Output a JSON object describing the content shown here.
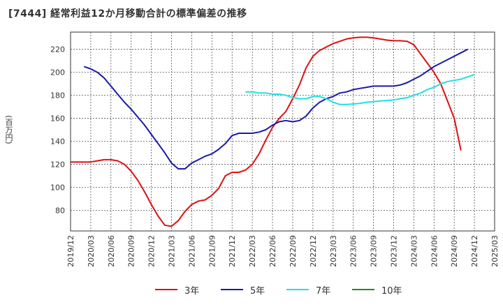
{
  "chart_data": {
    "type": "line",
    "title": "[7444]  経常利益12か月移動合計の標準偏差の推移",
    "ylabel": "(百万円)",
    "ylim": [
      62,
      235
    ],
    "yticks": [
      80,
      100,
      120,
      140,
      160,
      180,
      200,
      220
    ],
    "x_tick_labels": [
      "2019/12",
      "2020/03",
      "2020/06",
      "2020/09",
      "2020/12",
      "2021/03",
      "2021/06",
      "2021/09",
      "2021/12",
      "2022/03",
      "2022/06",
      "2022/09",
      "2022/12",
      "2023/03",
      "2023/06",
      "2023/09",
      "2023/12",
      "2024/03",
      "2024/06",
      "2024/09",
      "2024/12",
      "2025/03"
    ],
    "grid": true,
    "legend_position": "bottom",
    "series": [
      {
        "name": "3年",
        "color": "#dd1111",
        "start": "2019/12",
        "values": [
          122,
          122,
          122,
          122,
          123,
          124,
          124,
          123,
          120,
          114,
          106,
          96,
          85,
          75,
          67,
          66,
          71,
          79,
          85,
          88,
          89,
          93,
          99,
          110,
          113,
          113,
          115,
          120,
          129,
          141,
          152,
          160,
          166,
          177,
          189,
          204,
          214,
          219,
          222,
          225,
          227,
          229,
          230,
          230.5,
          230.5,
          230,
          229,
          228,
          227.5,
          227.5,
          227,
          224,
          216,
          208,
          200,
          190,
          175,
          160,
          132
        ]
      },
      {
        "name": "5年",
        "color": "#1a1aa8",
        "start": "2020/02",
        "values": [
          205,
          203,
          200,
          195,
          188,
          181,
          174,
          168,
          161,
          154,
          146,
          138,
          130,
          121,
          116,
          116,
          121,
          124,
          127,
          129,
          133,
          138,
          145,
          147,
          147,
          147,
          148,
          150,
          154,
          157,
          158,
          157,
          158,
          162,
          169,
          174,
          177,
          179,
          182,
          183,
          185,
          186,
          187,
          188,
          188,
          188,
          188,
          189,
          191,
          194,
          197,
          201,
          205,
          208,
          211,
          214,
          217,
          220
        ]
      },
      {
        "name": "7年",
        "color": "#22e0e0",
        "start": "2022/02",
        "values": [
          183,
          183,
          182,
          182,
          181,
          181,
          180,
          178,
          177,
          177,
          179,
          179,
          177,
          174,
          172,
          172,
          172.5,
          173,
          174,
          174.5,
          175,
          175.5,
          176,
          177,
          178,
          180,
          182,
          185,
          187,
          190,
          192,
          193,
          194,
          196,
          198
        ]
      },
      {
        "name": "10年",
        "color": "#228b22",
        "start": "",
        "values": []
      }
    ]
  }
}
